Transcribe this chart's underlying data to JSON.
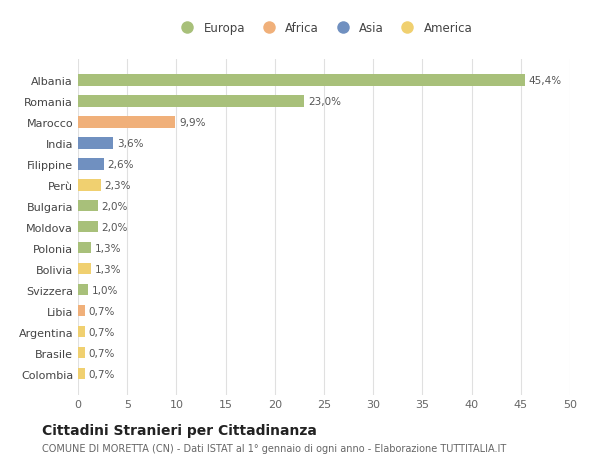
{
  "countries": [
    "Albania",
    "Romania",
    "Marocco",
    "India",
    "Filippine",
    "Perù",
    "Bulgaria",
    "Moldova",
    "Polonia",
    "Bolivia",
    "Svizzera",
    "Libia",
    "Argentina",
    "Brasile",
    "Colombia"
  ],
  "values": [
    45.4,
    23.0,
    9.9,
    3.6,
    2.6,
    2.3,
    2.0,
    2.0,
    1.3,
    1.3,
    1.0,
    0.7,
    0.7,
    0.7,
    0.7
  ],
  "labels": [
    "45,4%",
    "23,0%",
    "9,9%",
    "3,6%",
    "2,6%",
    "2,3%",
    "2,0%",
    "2,0%",
    "1,3%",
    "1,3%",
    "1,0%",
    "0,7%",
    "0,7%",
    "0,7%",
    "0,7%"
  ],
  "colors": [
    "#a8c07a",
    "#a8c07a",
    "#f0b07a",
    "#7090c0",
    "#7090c0",
    "#f0d070",
    "#a8c07a",
    "#a8c07a",
    "#a8c07a",
    "#f0d070",
    "#a8c07a",
    "#f0b07a",
    "#f0d070",
    "#f0d070",
    "#f0d070"
  ],
  "legend_labels": [
    "Europa",
    "Africa",
    "Asia",
    "America"
  ],
  "legend_colors": [
    "#a8c07a",
    "#f0b07a",
    "#7090c0",
    "#f0d070"
  ],
  "xlim": [
    0,
    50
  ],
  "xticks": [
    0,
    5,
    10,
    15,
    20,
    25,
    30,
    35,
    40,
    45,
    50
  ],
  "title": "Cittadini Stranieri per Cittadinanza",
  "subtitle": "COMUNE DI MORETTA (CN) - Dati ISTAT al 1° gennaio di ogni anno - Elaborazione TUTTITALIA.IT",
  "bg_color": "#ffffff",
  "grid_color": "#e0e0e0",
  "bar_height": 0.55,
  "label_fontsize": 7.5,
  "ytick_fontsize": 8.0,
  "xtick_fontsize": 8.0,
  "legend_fontsize": 8.5,
  "title_fontsize": 10,
  "subtitle_fontsize": 7.0
}
